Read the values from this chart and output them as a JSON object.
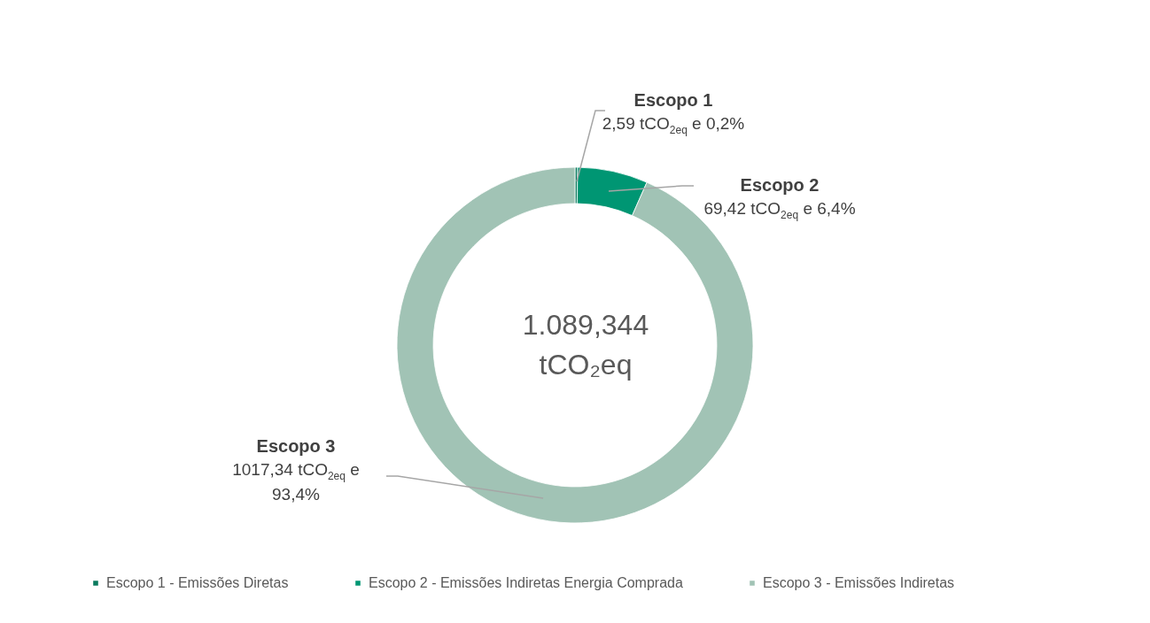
{
  "chart_data": {
    "type": "donut",
    "categories": [
      "Escopo 1 - Emissões Diretas",
      "Escopo 2 - Emissões Indiretas Energia Comprada",
      "Escopo 3 - Emissões Indiretas"
    ],
    "values": [
      2.59,
      69.42,
      1017.34
    ],
    "colors": [
      "#0b7a5e",
      "#009673",
      "#a1c3b5"
    ],
    "value_labels": [
      "Escopo 1\n2,59 tCO$_{2eq}$ e 0,2%",
      "Escopo 2\n69,42  tCO$_{2eq}$ e 6,4%",
      "Escopo 3\n1017,34 tCO$_{2eq}$ e\n93,4%"
    ],
    "annotations": [
      "1.089,344 tCO₂eq"
    ],
    "legend": "bottom"
  }
}
